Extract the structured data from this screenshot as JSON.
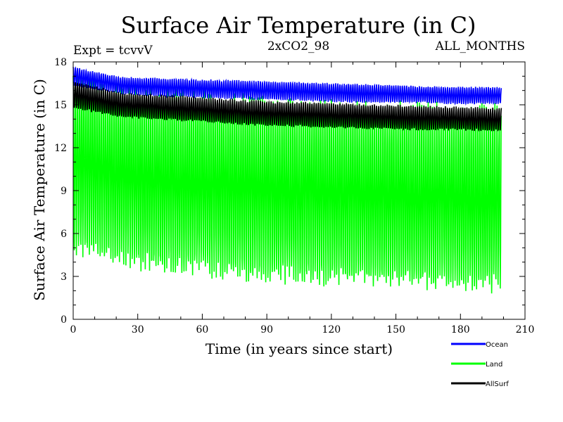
{
  "header": {
    "title": "Surface Air Temperature (in C)",
    "left_note": "Expt = tcvvV",
    "center_note": "2xCO2_98",
    "right_note": "ALL_MONTHS"
  },
  "chart_data": {
    "type": "line",
    "xlabel": "Time (in years since start)",
    "ylabel": "Surface Air Temperature (in C)",
    "xlim": [
      0,
      210
    ],
    "ylim": [
      0,
      18
    ],
    "x_ticks": [
      0,
      30,
      60,
      90,
      120,
      150,
      180,
      210
    ],
    "y_ticks": [
      0,
      3,
      6,
      9,
      12,
      15,
      18
    ],
    "years": 199,
    "seasonal_samples_per_year": 12,
    "legend_position": "bottom-right outside",
    "series": [
      {
        "name": "Ocean",
        "color": "#0000ff",
        "annual_summer_max": [
          17.6,
          16.9,
          16.8,
          16.7,
          16.6,
          16.5,
          16.4,
          16.3,
          16.2,
          16.2
        ],
        "annual_winter_min": [
          16.4,
          15.8,
          15.6,
          15.5,
          15.4,
          15.3,
          15.2,
          15.2,
          15.1,
          15.1
        ]
      },
      {
        "name": "Land",
        "color": "#00ff00",
        "annual_summer_max": [
          16.8,
          15.9,
          15.6,
          15.3,
          15.0,
          14.9,
          14.7,
          14.6,
          14.5,
          14.4
        ],
        "annual_winter_min": [
          5.2,
          4.2,
          3.8,
          3.5,
          3.2,
          3.0,
          2.9,
          2.7,
          2.6,
          2.5
        ]
      },
      {
        "name": "AllSurf",
        "color": "#000000",
        "annual_summer_max": [
          16.6,
          15.8,
          15.6,
          15.4,
          15.2,
          15.1,
          15.0,
          14.9,
          14.8,
          14.7
        ],
        "annual_winter_min": [
          14.8,
          14.2,
          14.0,
          13.8,
          13.6,
          13.5,
          13.4,
          13.3,
          13.3,
          13.2
        ]
      }
    ]
  }
}
